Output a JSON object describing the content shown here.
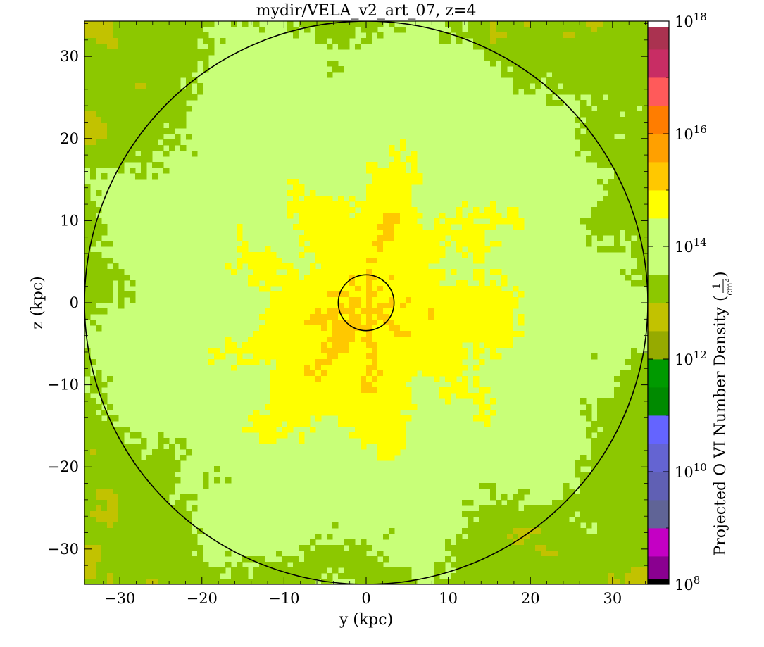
{
  "chart_data": {
    "type": "heatmap",
    "title": "mydir/VELA_v2_art_07, z=4",
    "xlabel": "y  (kpc)",
    "ylabel": "z  (kpc)",
    "xlim": [
      -34.3,
      34.3
    ],
    "ylim": [
      -34.3,
      34.3
    ],
    "x_ticks": [
      -30,
      -20,
      -10,
      0,
      10,
      20,
      30
    ],
    "y_ticks": [
      -30,
      -20,
      -10,
      0,
      10,
      20,
      30
    ],
    "x_tick_labels": [
      "−30",
      "−20",
      "−10",
      "0",
      "10",
      "20",
      "30"
    ],
    "y_tick_labels": [
      "−30",
      "−20",
      "−10",
      "0",
      "10",
      "20",
      "30"
    ],
    "colorbar": {
      "label": "Projected O VI Number Density",
      "unit_numerator": "1",
      "unit_denominator": "cm",
      "unit_denominator_exp": "2",
      "scale": "log",
      "range_log10": [
        8,
        18
      ],
      "tick_base": "10",
      "tick_exponents": [
        "8",
        "10",
        "12",
        "14",
        "16",
        "18"
      ],
      "bands": [
        {
          "from": 8.0,
          "to": 8.1,
          "color": "#000000"
        },
        {
          "from": 8.1,
          "to": 8.5,
          "color": "#8a0090"
        },
        {
          "from": 8.5,
          "to": 9.0,
          "color": "#c400c4"
        },
        {
          "from": 9.0,
          "to": 9.5,
          "color": "#606496"
        },
        {
          "from": 9.5,
          "to": 10.0,
          "color": "#6060b4"
        },
        {
          "from": 10.0,
          "to": 10.5,
          "color": "#6464d2"
        },
        {
          "from": 10.5,
          "to": 11.0,
          "color": "#6464ff"
        },
        {
          "from": 11.0,
          "to": 11.5,
          "color": "#008a00"
        },
        {
          "from": 11.5,
          "to": 12.0,
          "color": "#009a00"
        },
        {
          "from": 12.0,
          "to": 12.5,
          "color": "#96aa00"
        },
        {
          "from": 12.5,
          "to": 13.0,
          "color": "#c2c200"
        },
        {
          "from": 13.0,
          "to": 13.5,
          "color": "#8cc800"
        },
        {
          "from": 13.5,
          "to": 14.5,
          "color": "#c8ff78"
        },
        {
          "from": 14.5,
          "to": 15.0,
          "color": "#ffff00"
        },
        {
          "from": 15.0,
          "to": 15.5,
          "color": "#ffc800"
        },
        {
          "from": 15.5,
          "to": 16.0,
          "color": "#ffa000"
        },
        {
          "from": 16.0,
          "to": 16.5,
          "color": "#ff7d00"
        },
        {
          "from": 16.5,
          "to": 17.0,
          "color": "#ff5a5a"
        },
        {
          "from": 17.0,
          "to": 17.5,
          "color": "#c82d64"
        },
        {
          "from": 17.5,
          "to": 17.9,
          "color": "#aa3250"
        },
        {
          "from": 17.9,
          "to": 18.0,
          "color": "#ffffff"
        }
      ]
    },
    "overlays": [
      {
        "shape": "circle",
        "center": [
          0,
          0
        ],
        "radius_kpc": 34.3,
        "color": "#000000"
      },
      {
        "shape": "circle",
        "center": [
          0,
          0
        ],
        "radius_kpc": 3.4,
        "color": "#000000"
      }
    ],
    "field_colors": {
      "background": "#c8ff78",
      "low": "#8cc800",
      "lowest": "#c2c200",
      "high": "#ffff00",
      "highest": "#ffc800"
    },
    "grid": false
  }
}
